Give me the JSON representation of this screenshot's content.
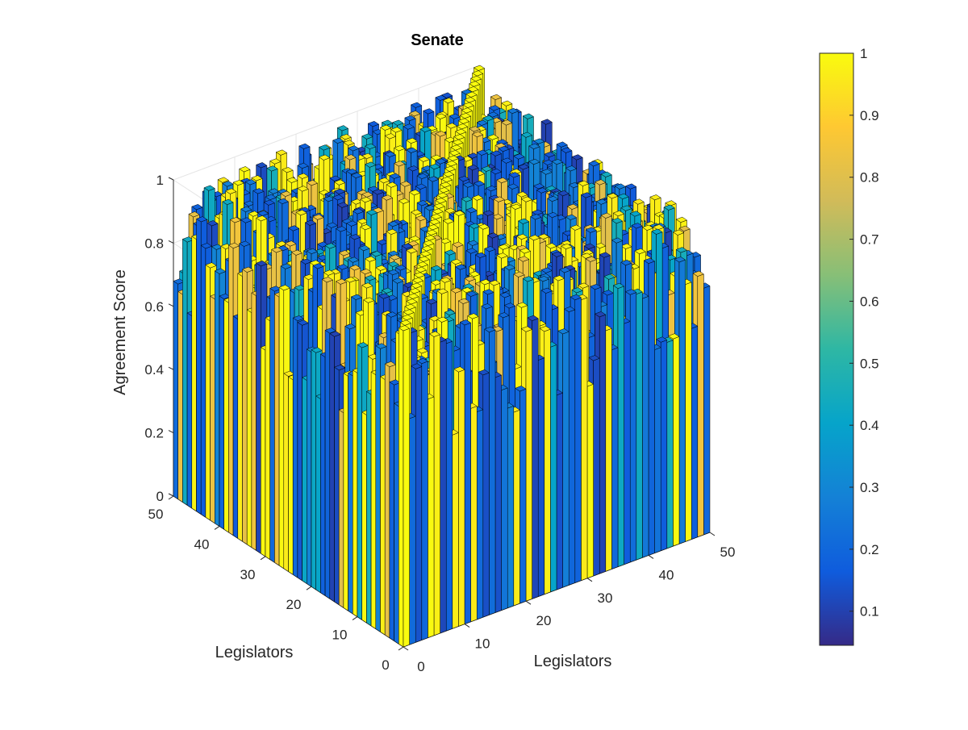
{
  "chart_data": {
    "type": "surface",
    "title": "Senate",
    "xlabel": "Legislators",
    "ylabel": "Legislators",
    "zlabel": "Agreement Score",
    "xlim": [
      0,
      50
    ],
    "ylim": [
      0,
      50
    ],
    "zlim": [
      0,
      1
    ],
    "xticks": [
      "0",
      "10",
      "20",
      "30",
      "40",
      "50"
    ],
    "yticks": [
      "0",
      "10",
      "20",
      "30",
      "40",
      "50"
    ],
    "zticks": [
      "0",
      "0.2",
      "0.4",
      "0.6",
      "0.8",
      "1"
    ],
    "grid": true,
    "colormap": "parula",
    "colorbar": {
      "range": [
        0.045,
        1
      ],
      "ticks": [
        "0.1",
        "0.2",
        "0.3",
        "0.4",
        "0.5",
        "0.6",
        "0.7",
        "0.8",
        "0.9",
        "1"
      ],
      "position": "right"
    },
    "legislator_count": 50,
    "value_min": 0.045,
    "value_max": 1
  },
  "colors": {
    "parula_stops": [
      "#352a87",
      "#0f5cdd",
      "#1481d6",
      "#06a4ca",
      "#2eb7a4",
      "#87bf77",
      "#d1bb59",
      "#fec832",
      "#f9fb0e"
    ],
    "grid": "#e5e5e5",
    "axis": "#262626",
    "edge": "#000000"
  }
}
